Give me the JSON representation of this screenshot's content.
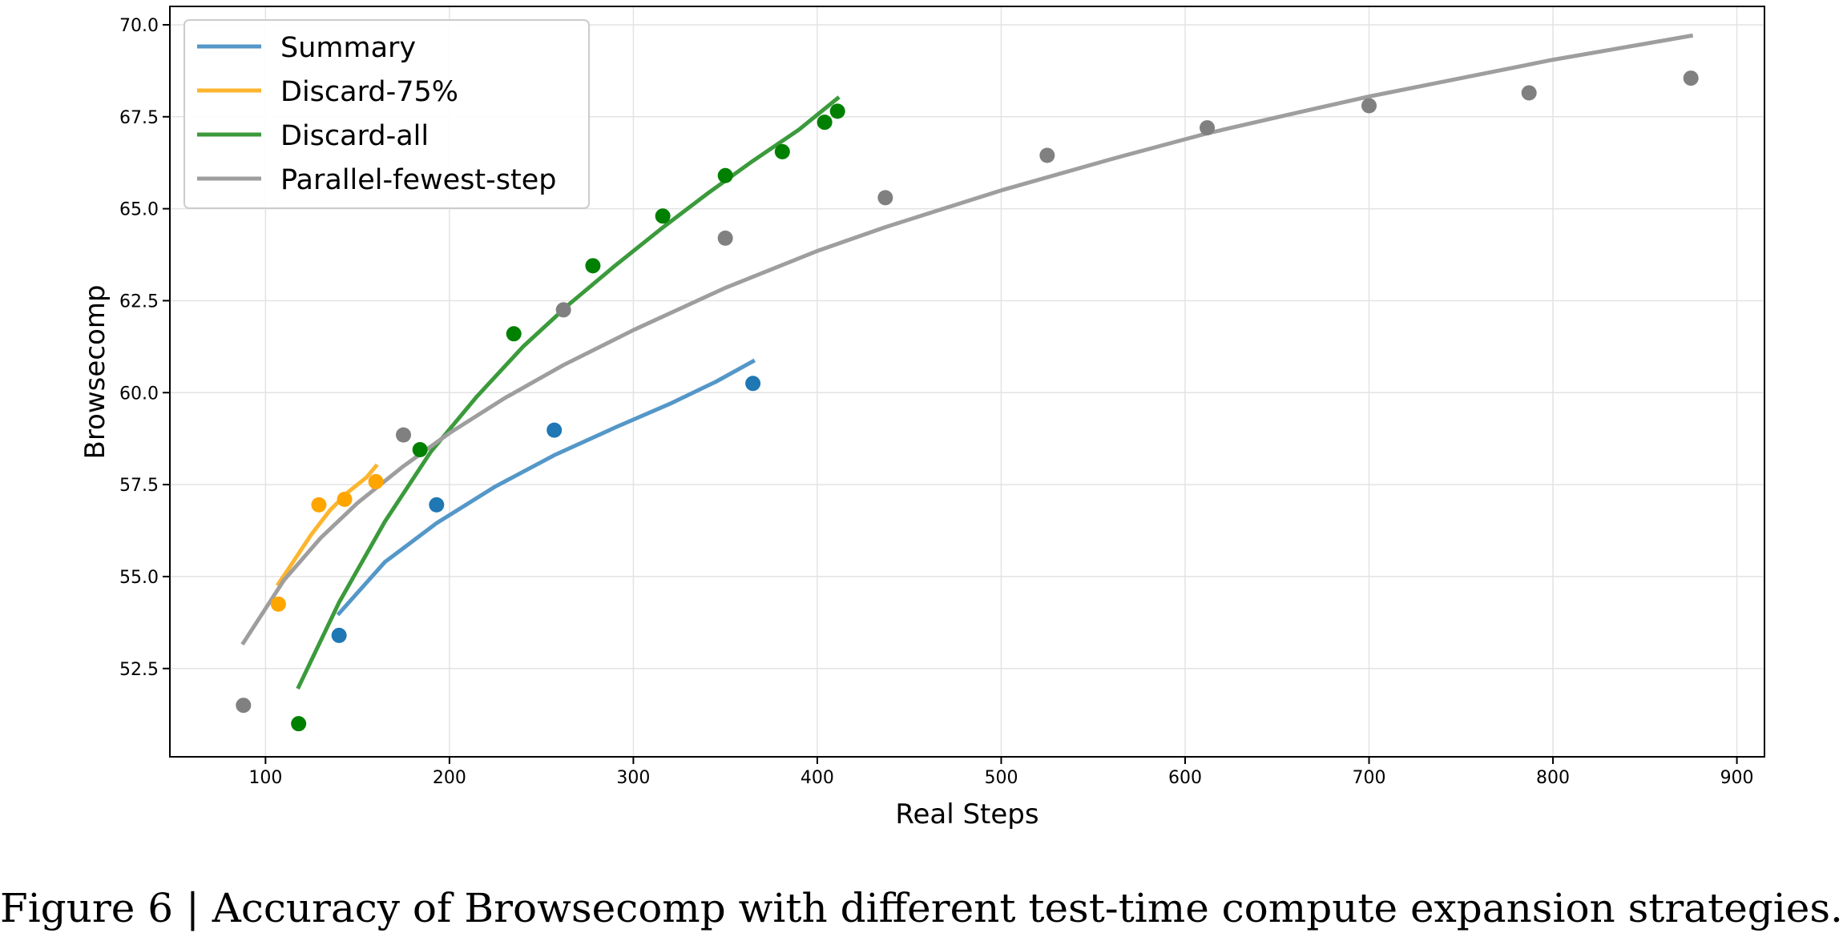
{
  "caption": "Figure 6 | Accuracy of Browsecomp with different test-time compute expansion strategies.",
  "chart_data": {
    "type": "scatter",
    "xlabel": "Real Steps",
    "ylabel": "Browsecomp",
    "xlim": [
      48,
      915
    ],
    "ylim": [
      50.1,
      70.5
    ],
    "xticks": [
      100,
      200,
      300,
      400,
      500,
      600,
      700,
      800,
      900
    ],
    "yticks": [
      52.5,
      55.0,
      57.5,
      60.0,
      62.5,
      65.0,
      67.5,
      70.0
    ],
    "grid": true,
    "legend_position": "top-left",
    "series": [
      {
        "name": "Summary",
        "line_color": "#5497c8",
        "point_color": "#1f77b4",
        "points": [
          [
            140,
            53.4
          ],
          [
            193,
            56.95
          ],
          [
            257,
            58.98
          ],
          [
            365,
            60.25
          ]
        ],
        "fit": [
          [
            140,
            54.0
          ],
          [
            165,
            55.4
          ],
          [
            193,
            56.45
          ],
          [
            225,
            57.45
          ],
          [
            257,
            58.3
          ],
          [
            290,
            59.05
          ],
          [
            320,
            59.7
          ],
          [
            345,
            60.3
          ],
          [
            365,
            60.85
          ]
        ]
      },
      {
        "name": "Discard-75%",
        "line_color": "#fdb52e",
        "point_color": "#ffa500",
        "points": [
          [
            107,
            54.25
          ],
          [
            129,
            56.95
          ],
          [
            143,
            57.1
          ],
          [
            160,
            57.58
          ]
        ],
        "fit": [
          [
            107,
            54.8
          ],
          [
            115,
            55.4
          ],
          [
            125,
            56.15
          ],
          [
            135,
            56.8
          ],
          [
            145,
            57.3
          ],
          [
            155,
            57.7
          ],
          [
            160,
            58.0
          ]
        ]
      },
      {
        "name": "Discard-all",
        "line_color": "#3b9a3b",
        "point_color": "#008000",
        "points": [
          [
            118,
            51.0
          ],
          [
            184,
            58.45
          ],
          [
            235,
            61.6
          ],
          [
            278,
            63.45
          ],
          [
            316,
            64.8
          ],
          [
            350,
            65.9
          ],
          [
            381,
            66.55
          ],
          [
            404,
            67.35
          ],
          [
            411,
            67.65
          ]
        ],
        "fit": [
          [
            118,
            52.0
          ],
          [
            140,
            54.3
          ],
          [
            165,
            56.5
          ],
          [
            190,
            58.4
          ],
          [
            215,
            59.9
          ],
          [
            240,
            61.25
          ],
          [
            265,
            62.4
          ],
          [
            290,
            63.45
          ],
          [
            315,
            64.45
          ],
          [
            340,
            65.4
          ],
          [
            365,
            66.3
          ],
          [
            390,
            67.15
          ],
          [
            411,
            68.0
          ]
        ]
      },
      {
        "name": "Parallel-fewest-step",
        "line_color": "#9e9e9e",
        "point_color": "#808080",
        "points": [
          [
            88,
            51.5
          ],
          [
            175,
            58.85
          ],
          [
            262,
            62.25
          ],
          [
            350,
            64.2
          ],
          [
            437,
            65.3
          ],
          [
            525,
            66.45
          ],
          [
            612,
            67.2
          ],
          [
            700,
            67.8
          ],
          [
            787,
            68.15
          ],
          [
            875,
            68.55
          ]
        ],
        "fit": [
          [
            88,
            53.2
          ],
          [
            110,
            54.9
          ],
          [
            130,
            56.05
          ],
          [
            150,
            57.0
          ],
          [
            175,
            58.0
          ],
          [
            200,
            58.9
          ],
          [
            230,
            59.85
          ],
          [
            262,
            60.75
          ],
          [
            300,
            61.7
          ],
          [
            350,
            62.85
          ],
          [
            400,
            63.85
          ],
          [
            437,
            64.5
          ],
          [
            500,
            65.5
          ],
          [
            560,
            66.35
          ],
          [
            612,
            67.05
          ],
          [
            660,
            67.6
          ],
          [
            700,
            68.05
          ],
          [
            750,
            68.55
          ],
          [
            800,
            69.05
          ],
          [
            875,
            69.7
          ]
        ]
      }
    ]
  }
}
